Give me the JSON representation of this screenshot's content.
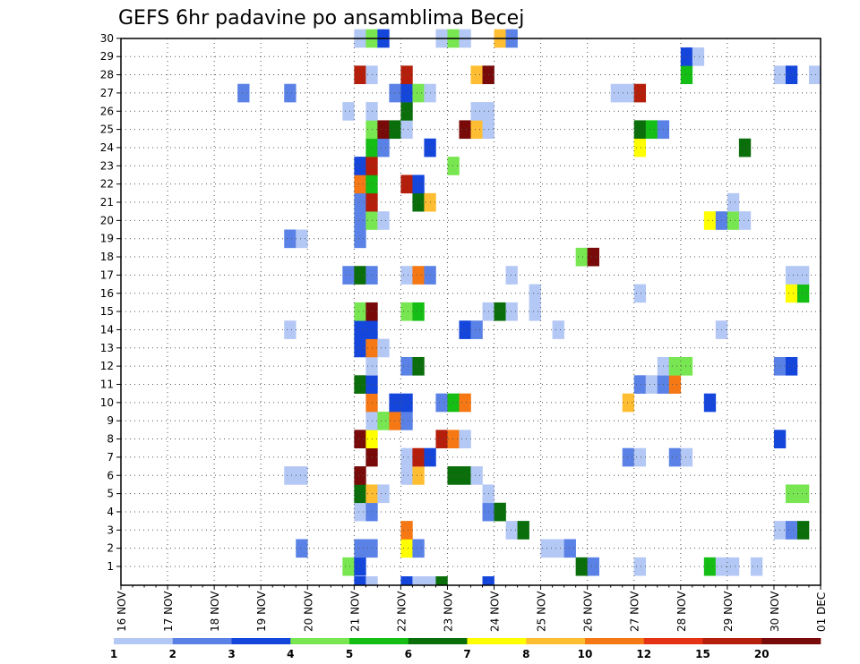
{
  "chart_data": {
    "type": "heatmap",
    "title": "GEFS 6hr padavine po ansamblima Becej",
    "y_categories": [
      1,
      2,
      3,
      4,
      5,
      6,
      7,
      8,
      9,
      10,
      11,
      12,
      13,
      14,
      15,
      16,
      17,
      18,
      19,
      20,
      21,
      22,
      23,
      24,
      25,
      26,
      27,
      28,
      29,
      30
    ],
    "x_ticks": [
      "16 NOV",
      "17 NOV",
      "18 NOV",
      "19 NOV",
      "20 NOV",
      "21 NOV",
      "22 NOV",
      "23 NOV",
      "24 NOV",
      "25 NOV",
      "26 NOV",
      "27 NOV",
      "28 NOV",
      "29 NOV",
      "30 NOV",
      "01 DEC"
    ],
    "x_unit": "days since 16 NOV 00Z (6-hour steps)",
    "grid": true,
    "colorbar": {
      "labels": [
        "1",
        "2",
        "3",
        "4",
        "5",
        "6",
        "7",
        "8",
        "10",
        "12",
        "15",
        "20"
      ],
      "colors": [
        "#b4c8f5",
        "#5a82e6",
        "#1446dc",
        "#78e650",
        "#14be14",
        "#0a6e0a",
        "#ffff00",
        "#ffbe32",
        "#f57814",
        "#e63214",
        "#b41e0a",
        "#780a0a"
      ]
    },
    "cells": [
      {
        "m": 1,
        "t": 4.75,
        "c": 4
      },
      {
        "m": 1,
        "t": 5.0,
        "c": 3
      },
      {
        "m": 1,
        "t": 9.75,
        "c": 6
      },
      {
        "m": 1,
        "t": 10.0,
        "c": 2
      },
      {
        "m": 1,
        "t": 11.0,
        "c": 1
      },
      {
        "m": 1,
        "t": 12.5,
        "c": 5
      },
      {
        "m": 1,
        "t": 12.75,
        "c": 1
      },
      {
        "m": 1,
        "t": 13.0,
        "c": 1
      },
      {
        "m": 1,
        "t": 13.5,
        "c": 1
      },
      {
        "m": 2,
        "t": 3.75,
        "c": 2
      },
      {
        "m": 2,
        "t": 5.0,
        "c": 2
      },
      {
        "m": 2,
        "t": 5.25,
        "c": 2
      },
      {
        "m": 2,
        "t": 6.0,
        "c": 7
      },
      {
        "m": 2,
        "t": 6.25,
        "c": 2
      },
      {
        "m": 2,
        "t": 9.0,
        "c": 1
      },
      {
        "m": 2,
        "t": 9.25,
        "c": 1
      },
      {
        "m": 2,
        "t": 9.5,
        "c": 2
      },
      {
        "m": 3,
        "t": 6.0,
        "c": 9
      },
      {
        "m": 3,
        "t": 8.25,
        "c": 1
      },
      {
        "m": 3,
        "t": 8.5,
        "c": 6
      },
      {
        "m": 3,
        "t": 14.0,
        "c": 1
      },
      {
        "m": 3,
        "t": 14.25,
        "c": 2
      },
      {
        "m": 3,
        "t": 14.5,
        "c": 6
      },
      {
        "m": 4,
        "t": 5.0,
        "c": 1
      },
      {
        "m": 4,
        "t": 5.25,
        "c": 2
      },
      {
        "m": 4,
        "t": 7.75,
        "c": 2
      },
      {
        "m": 4,
        "t": 8.0,
        "c": 6
      },
      {
        "m": 5,
        "t": 5.0,
        "c": 6
      },
      {
        "m": 5,
        "t": 5.25,
        "c": 8
      },
      {
        "m": 5,
        "t": 5.5,
        "c": 1
      },
      {
        "m": 5,
        "t": 7.75,
        "c": 1
      },
      {
        "m": 5,
        "t": 14.25,
        "c": 4
      },
      {
        "m": 5,
        "t": 14.5,
        "c": 4
      },
      {
        "m": 6,
        "t": 3.5,
        "c": 1
      },
      {
        "m": 6,
        "t": 3.75,
        "c": 1
      },
      {
        "m": 6,
        "t": 5.0,
        "c": 12
      },
      {
        "m": 6,
        "t": 6.0,
        "c": 1
      },
      {
        "m": 6,
        "t": 6.25,
        "c": 8
      },
      {
        "m": 6,
        "t": 7.0,
        "c": 6
      },
      {
        "m": 6,
        "t": 7.25,
        "c": 6
      },
      {
        "m": 6,
        "t": 7.5,
        "c": 1
      },
      {
        "m": 7,
        "t": 5.25,
        "c": 12
      },
      {
        "m": 7,
        "t": 6.0,
        "c": 1
      },
      {
        "m": 7,
        "t": 6.25,
        "c": 11
      },
      {
        "m": 7,
        "t": 6.5,
        "c": 3
      },
      {
        "m": 7,
        "t": 10.75,
        "c": 2
      },
      {
        "m": 7,
        "t": 11.0,
        "c": 1
      },
      {
        "m": 7,
        "t": 11.75,
        "c": 2
      },
      {
        "m": 7,
        "t": 12.0,
        "c": 1
      },
      {
        "m": 8,
        "t": 5.0,
        "c": 12
      },
      {
        "m": 8,
        "t": 5.25,
        "c": 7
      },
      {
        "m": 8,
        "t": 6.75,
        "c": 11
      },
      {
        "m": 8,
        "t": 7.0,
        "c": 9
      },
      {
        "m": 8,
        "t": 7.25,
        "c": 1
      },
      {
        "m": 8,
        "t": 14.0,
        "c": 3
      },
      {
        "m": 9,
        "t": 5.25,
        "c": 1
      },
      {
        "m": 9,
        "t": 5.5,
        "c": 4
      },
      {
        "m": 9,
        "t": 5.75,
        "c": 9
      },
      {
        "m": 9,
        "t": 6.0,
        "c": 2
      },
      {
        "m": 10,
        "t": 5.25,
        "c": 9
      },
      {
        "m": 10,
        "t": 5.75,
        "c": 3
      },
      {
        "m": 10,
        "t": 6.0,
        "c": 3
      },
      {
        "m": 10,
        "t": 6.75,
        "c": 2
      },
      {
        "m": 10,
        "t": 7.0,
        "c": 5
      },
      {
        "m": 10,
        "t": 7.25,
        "c": 9
      },
      {
        "m": 10,
        "t": 10.75,
        "c": 8
      },
      {
        "m": 10,
        "t": 12.5,
        "c": 3
      },
      {
        "m": 11,
        "t": 5.0,
        "c": 6
      },
      {
        "m": 11,
        "t": 5.25,
        "c": 3
      },
      {
        "m": 11,
        "t": 11.0,
        "c": 2
      },
      {
        "m": 11,
        "t": 11.25,
        "c": 1
      },
      {
        "m": 11,
        "t": 11.5,
        "c": 2
      },
      {
        "m": 11,
        "t": 11.75,
        "c": 9
      },
      {
        "m": 12,
        "t": 5.25,
        "c": 1
      },
      {
        "m": 12,
        "t": 6.0,
        "c": 2
      },
      {
        "m": 12,
        "t": 6.25,
        "c": 6
      },
      {
        "m": 12,
        "t": 11.5,
        "c": 1
      },
      {
        "m": 12,
        "t": 11.75,
        "c": 4
      },
      {
        "m": 12,
        "t": 12.0,
        "c": 4
      },
      {
        "m": 12,
        "t": 14.0,
        "c": 2
      },
      {
        "m": 12,
        "t": 14.25,
        "c": 3
      },
      {
        "m": 13,
        "t": 5.0,
        "c": 3
      },
      {
        "m": 13,
        "t": 5.25,
        "c": 9
      },
      {
        "m": 13,
        "t": 5.5,
        "c": 1
      },
      {
        "m": 14,
        "t": 3.5,
        "c": 1
      },
      {
        "m": 14,
        "t": 5.0,
        "c": 3
      },
      {
        "m": 14,
        "t": 5.25,
        "c": 3
      },
      {
        "m": 14,
        "t": 7.25,
        "c": 3
      },
      {
        "m": 14,
        "t": 7.5,
        "c": 2
      },
      {
        "m": 14,
        "t": 9.25,
        "c": 1
      },
      {
        "m": 14,
        "t": 12.75,
        "c": 1
      },
      {
        "m": 15,
        "t": 5.0,
        "c": 4
      },
      {
        "m": 15,
        "t": 5.25,
        "c": 12
      },
      {
        "m": 15,
        "t": 6.0,
        "c": 4
      },
      {
        "m": 15,
        "t": 6.25,
        "c": 5
      },
      {
        "m": 15,
        "t": 7.75,
        "c": 1
      },
      {
        "m": 15,
        "t": 8.0,
        "c": 6
      },
      {
        "m": 15,
        "t": 8.25,
        "c": 1
      },
      {
        "m": 15,
        "t": 8.75,
        "c": 1
      },
      {
        "m": 16,
        "t": 8.75,
        "c": 1
      },
      {
        "m": 16,
        "t": 11.0,
        "c": 1
      },
      {
        "m": 16,
        "t": 14.25,
        "c": 7
      },
      {
        "m": 16,
        "t": 14.5,
        "c": 5
      },
      {
        "m": 17,
        "t": 4.75,
        "c": 2
      },
      {
        "m": 17,
        "t": 5.0,
        "c": 6
      },
      {
        "m": 17,
        "t": 5.25,
        "c": 2
      },
      {
        "m": 17,
        "t": 6.0,
        "c": 1
      },
      {
        "m": 17,
        "t": 6.25,
        "c": 9
      },
      {
        "m": 17,
        "t": 6.5,
        "c": 2
      },
      {
        "m": 17,
        "t": 8.25,
        "c": 1
      },
      {
        "m": 17,
        "t": 14.25,
        "c": 1
      },
      {
        "m": 17,
        "t": 14.5,
        "c": 1
      },
      {
        "m": 18,
        "t": 9.75,
        "c": 4
      },
      {
        "m": 18,
        "t": 10.0,
        "c": 12
      },
      {
        "m": 19,
        "t": 3.5,
        "c": 2
      },
      {
        "m": 19,
        "t": 3.75,
        "c": 1
      },
      {
        "m": 19,
        "t": 5.0,
        "c": 2
      },
      {
        "m": 20,
        "t": 5.0,
        "c": 2
      },
      {
        "m": 20,
        "t": 5.25,
        "c": 4
      },
      {
        "m": 20,
        "t": 5.5,
        "c": 1
      },
      {
        "m": 20,
        "t": 12.5,
        "c": 7
      },
      {
        "m": 20,
        "t": 12.75,
        "c": 2
      },
      {
        "m": 20,
        "t": 13.0,
        "c": 4
      },
      {
        "m": 20,
        "t": 13.25,
        "c": 1
      },
      {
        "m": 21,
        "t": 5.0,
        "c": 2
      },
      {
        "m": 21,
        "t": 5.25,
        "c": 11
      },
      {
        "m": 21,
        "t": 6.25,
        "c": 6
      },
      {
        "m": 21,
        "t": 6.5,
        "c": 8
      },
      {
        "m": 21,
        "t": 13.0,
        "c": 1
      },
      {
        "m": 22,
        "t": 5.0,
        "c": 9
      },
      {
        "m": 22,
        "t": 5.25,
        "c": 5
      },
      {
        "m": 22,
        "t": 6.0,
        "c": 11
      },
      {
        "m": 22,
        "t": 6.25,
        "c": 3
      },
      {
        "m": 23,
        "t": 5.0,
        "c": 3
      },
      {
        "m": 23,
        "t": 5.25,
        "c": 11
      },
      {
        "m": 23,
        "t": 7.0,
        "c": 4
      },
      {
        "m": 24,
        "t": 5.25,
        "c": 5
      },
      {
        "m": 24,
        "t": 5.5,
        "c": 2
      },
      {
        "m": 24,
        "t": 6.5,
        "c": 3
      },
      {
        "m": 24,
        "t": 11.0,
        "c": 7
      },
      {
        "m": 24,
        "t": 13.25,
        "c": 6
      },
      {
        "m": 25,
        "t": 5.25,
        "c": 4
      },
      {
        "m": 25,
        "t": 5.5,
        "c": 12
      },
      {
        "m": 25,
        "t": 5.75,
        "c": 6
      },
      {
        "m": 25,
        "t": 6.0,
        "c": 1
      },
      {
        "m": 25,
        "t": 7.25,
        "c": 12
      },
      {
        "m": 25,
        "t": 7.5,
        "c": 8
      },
      {
        "m": 25,
        "t": 7.75,
        "c": 1
      },
      {
        "m": 25,
        "t": 11.0,
        "c": 6
      },
      {
        "m": 25,
        "t": 11.25,
        "c": 5
      },
      {
        "m": 25,
        "t": 11.5,
        "c": 2
      },
      {
        "m": 26,
        "t": 4.75,
        "c": 1
      },
      {
        "m": 26,
        "t": 5.25,
        "c": 1
      },
      {
        "m": 26,
        "t": 6.0,
        "c": 6
      },
      {
        "m": 26,
        "t": 7.5,
        "c": 1
      },
      {
        "m": 26,
        "t": 7.75,
        "c": 1
      },
      {
        "m": 27,
        "t": 2.5,
        "c": 2
      },
      {
        "m": 27,
        "t": 3.5,
        "c": 2
      },
      {
        "m": 27,
        "t": 5.75,
        "c": 2
      },
      {
        "m": 27,
        "t": 6.0,
        "c": 3
      },
      {
        "m": 27,
        "t": 6.25,
        "c": 4
      },
      {
        "m": 27,
        "t": 6.5,
        "c": 1
      },
      {
        "m": 27,
        "t": 10.5,
        "c": 1
      },
      {
        "m": 27,
        "t": 10.75,
        "c": 1
      },
      {
        "m": 27,
        "t": 11.0,
        "c": 11
      },
      {
        "m": 28,
        "t": 5.0,
        "c": 11
      },
      {
        "m": 28,
        "t": 5.25,
        "c": 1
      },
      {
        "m": 28,
        "t": 6.0,
        "c": 11
      },
      {
        "m": 28,
        "t": 7.5,
        "c": 8
      },
      {
        "m": 28,
        "t": 7.75,
        "c": 12
      },
      {
        "m": 28,
        "t": 12.0,
        "c": 5
      },
      {
        "m": 28,
        "t": 14.0,
        "c": 1
      },
      {
        "m": 28,
        "t": 14.25,
        "c": 3
      },
      {
        "m": 28,
        "t": 14.75,
        "c": 1
      },
      {
        "m": 29,
        "t": 12.0,
        "c": 3
      },
      {
        "m": 29,
        "t": 12.25,
        "c": 1
      },
      {
        "m": 30,
        "t": 5.0,
        "c": 1
      },
      {
        "m": 30,
        "t": 5.25,
        "c": 4
      },
      {
        "m": 30,
        "t": 5.5,
        "c": 3
      },
      {
        "m": 30,
        "t": 6.75,
        "c": 1
      },
      {
        "m": 30,
        "t": 7.0,
        "c": 4
      },
      {
        "m": 30,
        "t": 7.25,
        "c": 1
      },
      {
        "m": 30,
        "t": 8.0,
        "c": 8
      },
      {
        "m": 30,
        "t": 8.25,
        "c": 2
      }
    ],
    "below_axis_cells": [
      {
        "t": 5.0,
        "c": 3
      },
      {
        "t": 6.0,
        "c": 3
      },
      {
        "t": 6.25,
        "c": 1
      },
      {
        "t": 6.5,
        "c": 1
      },
      {
        "t": 6.75,
        "c": 6
      },
      {
        "t": 7.75,
        "c": 3
      },
      {
        "t": 5.25,
        "c": 1
      }
    ]
  }
}
